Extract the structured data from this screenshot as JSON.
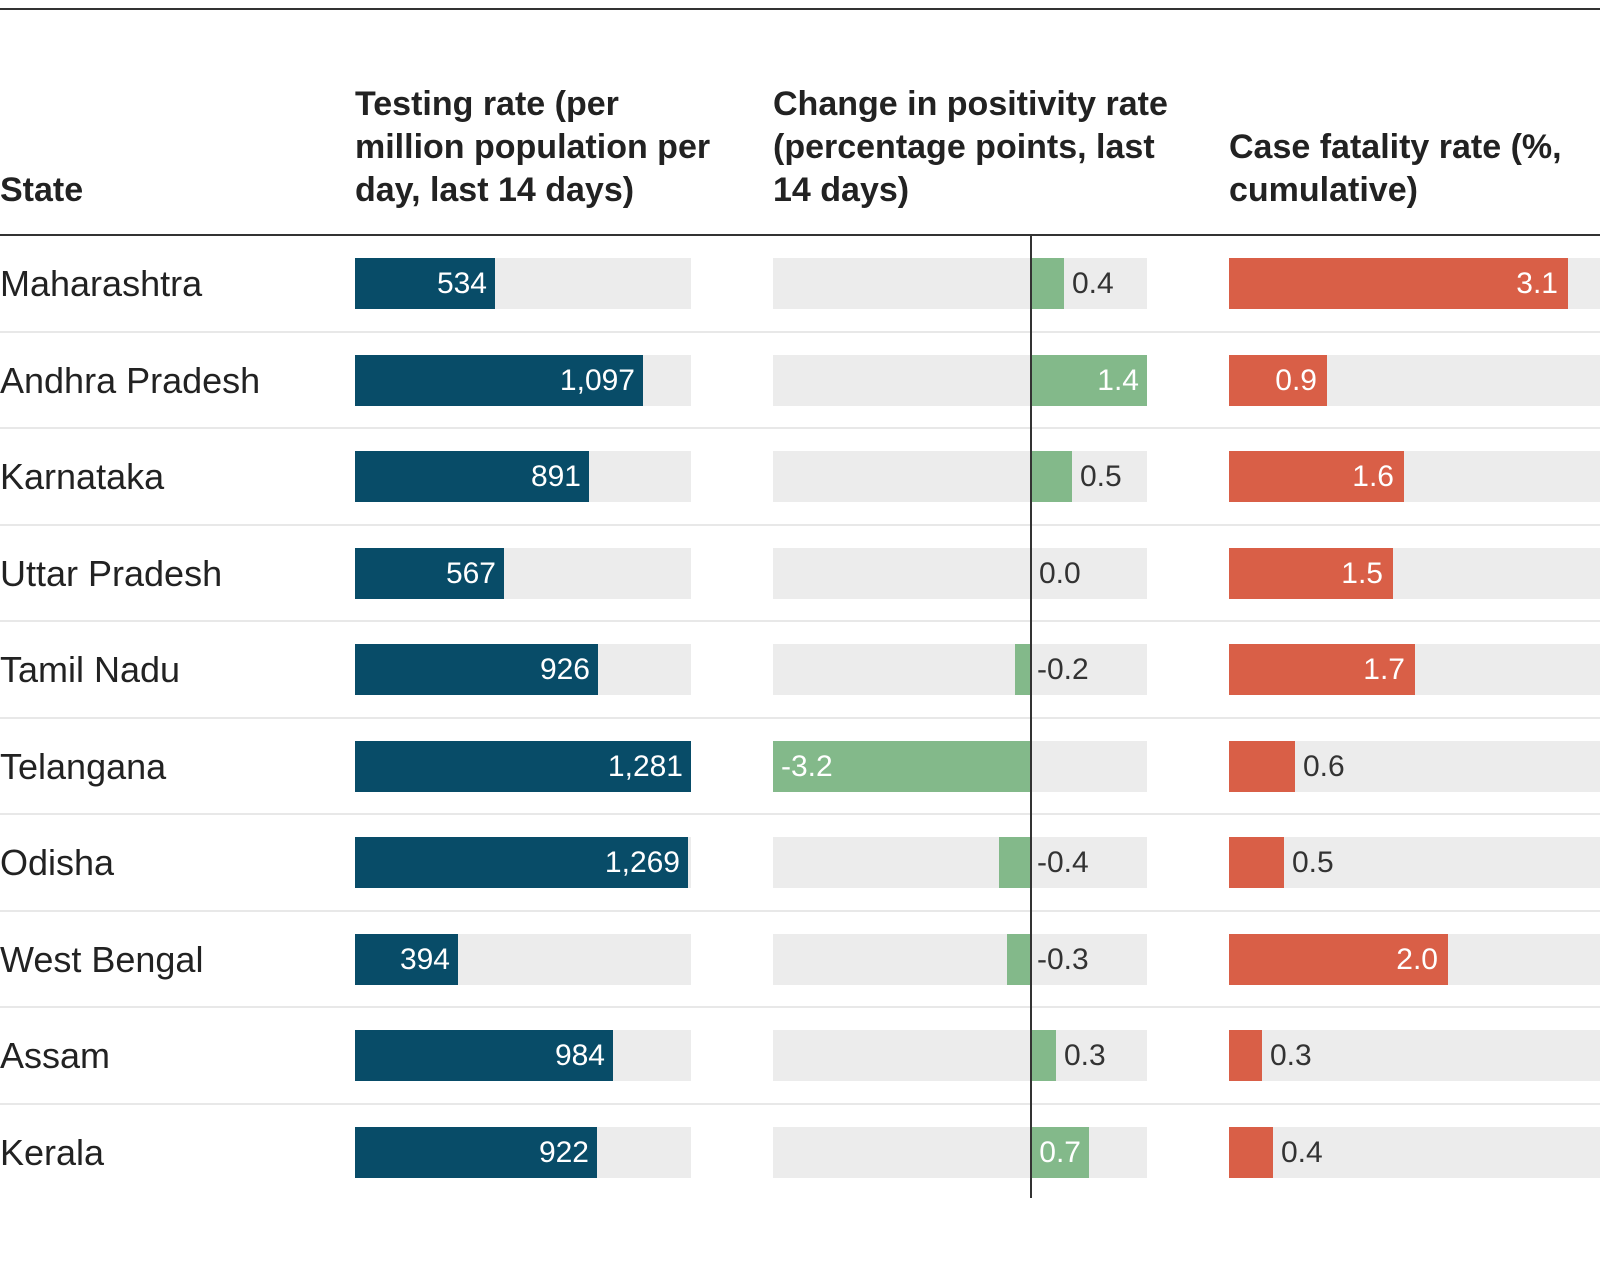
{
  "chart_data": {
    "type": "table",
    "columns": [
      {
        "key": "state",
        "label": "State"
      },
      {
        "key": "testing",
        "label": "Testing rate (per million population per day, last 14 days)",
        "color": "#084c68",
        "domain": [
          0,
          1281
        ]
      },
      {
        "key": "positivity",
        "label": "Change in positivity rate (percentage points, last 14 days)",
        "color": "#83b98a",
        "domain": [
          -3.2,
          1.4
        ]
      },
      {
        "key": "cfr",
        "label": "Case fatality rate (%, cumulative)",
        "color": "#d95f47",
        "domain": [
          0,
          3.1
        ]
      }
    ],
    "rows": [
      {
        "state": "Maharashtra",
        "testing": 534,
        "testing_label": "534",
        "positivity": 0.4,
        "positivity_label": "0.4",
        "cfr": 3.1,
        "cfr_label": "3.1"
      },
      {
        "state": "Andhra Pradesh",
        "testing": 1097,
        "testing_label": "1,097",
        "positivity": 1.4,
        "positivity_label": "1.4",
        "cfr": 0.9,
        "cfr_label": "0.9"
      },
      {
        "state": "Karnataka",
        "testing": 891,
        "testing_label": "891",
        "positivity": 0.5,
        "positivity_label": "0.5",
        "cfr": 1.6,
        "cfr_label": "1.6"
      },
      {
        "state": "Uttar Pradesh",
        "testing": 567,
        "testing_label": "567",
        "positivity": 0.0,
        "positivity_label": "0.0",
        "cfr": 1.5,
        "cfr_label": "1.5"
      },
      {
        "state": "Tamil Nadu",
        "testing": 926,
        "testing_label": "926",
        "positivity": -0.2,
        "positivity_label": "-0.2",
        "cfr": 1.7,
        "cfr_label": "1.7"
      },
      {
        "state": "Telangana",
        "testing": 1281,
        "testing_label": "1,281",
        "positivity": -3.2,
        "positivity_label": "-3.2",
        "cfr": 0.6,
        "cfr_label": "0.6"
      },
      {
        "state": "Odisha",
        "testing": 1269,
        "testing_label": "1,269",
        "positivity": -0.4,
        "positivity_label": "-0.4",
        "cfr": 0.5,
        "cfr_label": "0.5"
      },
      {
        "state": "West Bengal",
        "testing": 394,
        "testing_label": "394",
        "positivity": -0.3,
        "positivity_label": "-0.3",
        "cfr": 2.0,
        "cfr_label": "2.0"
      },
      {
        "state": "Assam",
        "testing": 984,
        "testing_label": "984",
        "positivity": 0.3,
        "positivity_label": "0.3",
        "cfr": 0.3,
        "cfr_label": "0.3"
      },
      {
        "state": "Kerala",
        "testing": 922,
        "testing_label": "922",
        "positivity": 0.7,
        "positivity_label": "0.7",
        "cfr": 0.4,
        "cfr_label": "0.4"
      }
    ]
  }
}
